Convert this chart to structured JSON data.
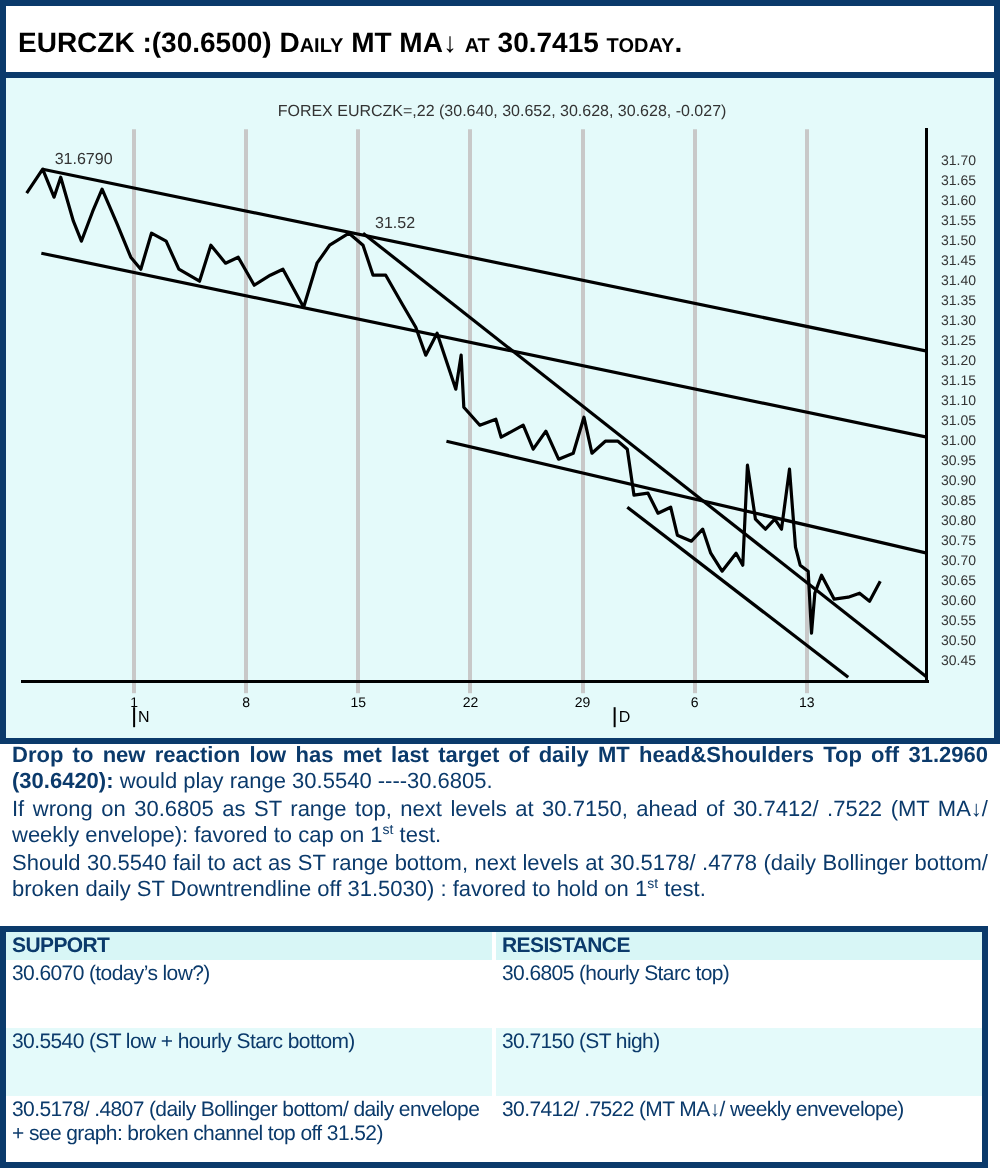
{
  "chart_data": {
    "type": "line",
    "title": "EURCZK :(30.6500) Daily MT MA↓ at 30.7415 today.",
    "subtitle": "FOREX EURCZK=,22 (30.640, 30.652, 30.628, 30.628, -0.027)",
    "x": [
      "--10-25T07:00",
      "--10-26T07:00",
      "--10-27T00:00",
      "--10-27T10:00",
      "--10-28T05:00",
      "--10-28T17:00",
      "--10-29T10:00",
      "--10-30T00:00",
      "--10-30T22:00",
      "--10-31T19:00",
      "--11-01T10:00",
      "--11-02T02:00",
      "--11-03T00:00",
      "--11-03T19:00",
      "--11-05T02:00",
      "--11-05T19:00",
      "--11-06T17:00",
      "--11-07T12:00",
      "--11-08T12:00",
      "--11-09T12:00",
      "--11-10T07:00",
      "--11-11T14:00",
      "--11-12T10:00",
      "--11-13T05:00",
      "--11-14T10:00",
      "--11-15T07:00",
      "--11-15T22:00",
      "--11-16T17:00",
      "--11-17T17:00",
      "--11-18T14:00",
      "--11-19T05:00",
      "--11-19T22:00",
      "--11-20T12:00",
      "--11-21T02:00",
      "--11-21T10:00",
      "--11-21T14:00",
      "--11-22T14:00",
      "--11-23T14:00",
      "--11-23T22:00",
      "--11-25T07:00",
      "--11-25T22:00",
      "--11-26T17:00",
      "--11-27T12:00",
      "--11-28T10:00",
      "--11-29T02:00",
      "--11-29T14:00",
      "--11-30T10:00",
      "--12-01T05:00",
      "--12-01T19:00",
      "--12-02T05:00",
      "--12-03T02:00",
      "--12-03T17:00",
      "--12-04T12:00",
      "--12-04T22:00",
      "--12-05T19:00",
      "--12-06T12:00",
      "--12-07T00:00",
      "--12-07T17:00",
      "--12-08T14:00",
      "--12-09T00:00",
      "--12-09T07:00",
      "--12-09T19:00",
      "--12-10T10:00",
      "--12-11T00:00",
      "--12-11T10:00",
      "--12-11T22:00",
      "--12-12T07:00",
      "--12-12T14:00",
      "--12-13T02:00",
      "--12-13T07:00",
      "--12-13T12:00",
      "--12-13T22:00",
      "--12-14T17:00",
      "--12-15T14:00",
      "--12-16T07:00",
      "--12-16T22:00",
      "--12-17T14:00"
    ],
    "series": [
      {
        "color": "#000000",
        "values": [
          31.62,
          31.68,
          31.61,
          31.66,
          31.55,
          31.5,
          31.575,
          31.63,
          31.545,
          31.46,
          31.43,
          31.52,
          31.5,
          31.43,
          31.4,
          31.49,
          31.445,
          31.46,
          31.39,
          31.415,
          31.43,
          31.335,
          31.445,
          31.49,
          31.52,
          31.49,
          31.415,
          31.415,
          31.345,
          31.285,
          31.215,
          31.27,
          31.2,
          31.13,
          31.215,
          31.085,
          31.04,
          31.055,
          31.01,
          31.04,
          30.98,
          31.025,
          30.955,
          30.97,
          31.06,
          30.97,
          31.0,
          31.0,
          30.98,
          30.865,
          30.87,
          30.82,
          30.835,
          30.765,
          30.75,
          30.78,
          30.72,
          30.675,
          30.72,
          30.69,
          30.94,
          30.805,
          30.78,
          30.805,
          30.78,
          30.93,
          30.735,
          30.69,
          30.675,
          30.52,
          30.62,
          30.665,
          30.605,
          30.61,
          30.62,
          30.6,
          30.65
        ]
      },
      {
        "type": "line",
        "color": "#000000",
        "x": [
          "--10-26T07:00",
          "--12-20T12:00"
        ],
        "values": [
          31.68,
          31.225
        ]
      },
      {
        "type": "line",
        "color": "#000000",
        "x": [
          "--10-26T05:00",
          "--12-20T12:00"
        ],
        "values": [
          31.47,
          31.01
        ]
      },
      {
        "type": "line",
        "color": "#000000",
        "x": [
          "--11-15T07:00",
          "--12-20T12:00"
        ],
        "values": [
          31.52,
          30.41
        ]
      },
      {
        "type": "line",
        "color": "#000000",
        "x": [
          "--11-20T12:00",
          "--12-20T12:00"
        ],
        "values": [
          31.0,
          30.72
        ]
      },
      {
        "type": "line",
        "color": "#000000",
        "x": [
          "--12-01T19:00",
          "--12-15T14:00"
        ],
        "values": [
          30.835,
          30.41
        ]
      }
    ],
    "xlim": [
      "--10-25T00:00",
      "--12-20T12:00"
    ],
    "xticks": [
      {
        "value": "--11-01",
        "label": "1"
      },
      {
        "value": "--11-08",
        "label": "8"
      },
      {
        "value": "--11-15",
        "label": "15"
      },
      {
        "value": "--11-22",
        "label": "22"
      },
      {
        "value": "--11-29",
        "label": "29"
      },
      {
        "value": "--12-06",
        "label": "6"
      },
      {
        "value": "--12-13",
        "label": "13"
      }
    ],
    "ylim": [
      30.4,
      31.78
    ],
    "yticks": [
      {
        "value": 30.45,
        "label": "30.45"
      },
      {
        "value": 30.5,
        "label": "30.50"
      },
      {
        "value": 30.55,
        "label": "30.55"
      },
      {
        "value": 30.6,
        "label": "30.60"
      },
      {
        "value": 30.65,
        "label": "30.65"
      },
      {
        "value": 30.7,
        "label": "30.70"
      },
      {
        "value": 30.75,
        "label": "30.75"
      },
      {
        "value": 30.8,
        "label": "30.80"
      },
      {
        "value": 30.85,
        "label": "30.85"
      },
      {
        "value": 30.9,
        "label": "30.90"
      },
      {
        "value": 30.95,
        "label": "30.95"
      },
      {
        "value": 31,
        "label": "31.00"
      },
      {
        "value": 31.05,
        "label": "31.05"
      },
      {
        "value": 31.1,
        "label": "31.10"
      },
      {
        "value": 31.15,
        "label": "31.15"
      },
      {
        "value": 31.2,
        "label": "31.20"
      },
      {
        "value": 31.25,
        "label": "31.25"
      },
      {
        "value": 31.3,
        "label": "31.30"
      },
      {
        "value": 31.35,
        "label": "31.35"
      },
      {
        "value": 31.4,
        "label": "31.40"
      },
      {
        "value": 31.45,
        "label": "31.45"
      },
      {
        "value": 31.5,
        "label": "31.50"
      },
      {
        "value": 31.55,
        "label": "31.55"
      },
      {
        "value": 31.6,
        "label": "31.60"
      },
      {
        "value": 31.65,
        "label": "31.65"
      },
      {
        "value": 31.7,
        "label": "31.70"
      }
    ],
    "grid": "x",
    "legend": false,
    "marker": "none",
    "line_style": "solid",
    "annotations": [
      {
        "text": "31.6790",
        "x": "--10-26T07:00",
        "y": 31.68
      },
      {
        "text": "31.52",
        "x": "--11-15T07:00",
        "y": 31.52
      },
      "N",
      "D",
      "Drop to new reaction low has met last target of daily MT head&Shoulders Top off 31.2960 (30.6420):",
      "would play range 30.5540 ----30.6805.",
      "If wrong on 30.6805 as ST range top, next levels at 30.7150, ahead of 30.7412/ .7522 (MT MA↓/ weekly envelope): favored to cap on 1$^{st}$ test.",
      "Should 30.5540 fail to act as ST range bottom, next levels at 30.5178/ .4778 (daily Bollinger bottom/ broken daily ST Downtrendline off 31.5030) : favored to hold on 1$^{st}$ test.",
      "SUPPORT",
      "RESISTANCE",
      "30.6070 (today’s low?)",
      "30.6805 (hourly Starc top)",
      "30.5540 (ST low + hourly Starc bottom)",
      "30.7150 (ST high)",
      "30.5178/ .4807 (daily Bollinger bottom/ daily envelope + see graph: broken channel top  off 31.52)",
      "30.7412/ .7522 (MT MA↓/ weekly envevelope)"
    ]
  }
}
